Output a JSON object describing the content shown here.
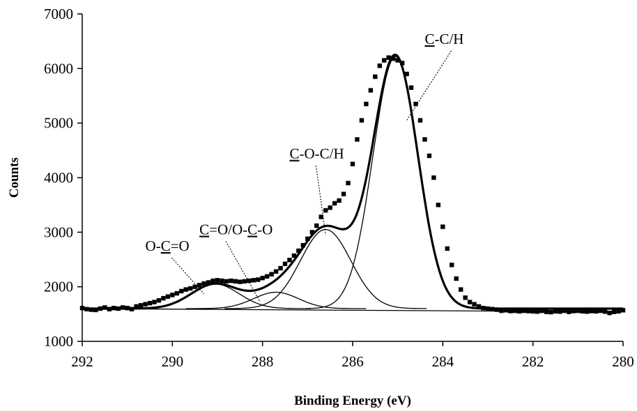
{
  "chart_data": {
    "type": "line",
    "title": "",
    "xlabel": "Binding Energy (eV)",
    "ylabel": "Counts",
    "xlim": [
      292,
      280
    ],
    "ylim": [
      1000,
      7000
    ],
    "x_reversed": true,
    "grid": false,
    "legend": "none",
    "x_ticks": [
      292,
      290,
      288,
      286,
      284,
      282,
      280
    ],
    "y_ticks": [
      1000,
      2000,
      3000,
      4000,
      5000,
      6000,
      7000
    ],
    "baseline": 1600,
    "components": [
      {
        "label_parts": [
          {
            "t": "C",
            "u": true
          },
          {
            "t": "-C/H",
            "u": false
          }
        ],
        "center": 285.05,
        "height": 4620,
        "sigma": 0.5
      },
      {
        "label_parts": [
          {
            "t": "C",
            "u": true
          },
          {
            "t": "-O-C/H",
            "u": false
          }
        ],
        "center": 286.6,
        "height": 1450,
        "sigma": 0.56
      },
      {
        "label_parts": [
          {
            "t": "C",
            "u": true
          },
          {
            "t": "=O/O-",
            "u": false
          },
          {
            "t": "C",
            "u": true
          },
          {
            "t": "-O",
            "u": false
          }
        ],
        "center": 287.7,
        "height": 300,
        "sigma": 0.5
      },
      {
        "label_parts": [
          {
            "t": "O-",
            "u": false
          },
          {
            "t": "C",
            "u": true
          },
          {
            "t": "=O",
            "u": false
          }
        ],
        "center": 289.05,
        "height": 450,
        "sigma": 0.53
      }
    ],
    "measured": {
      "x": [
        292.0,
        291.9,
        291.8,
        291.7,
        291.6,
        291.5,
        291.4,
        291.3,
        291.2,
        291.1,
        291.0,
        290.9,
        290.8,
        290.7,
        290.6,
        290.5,
        290.4,
        290.3,
        290.2,
        290.1,
        290.0,
        289.9,
        289.8,
        289.7,
        289.6,
        289.5,
        289.4,
        289.3,
        289.2,
        289.1,
        289.0,
        288.9,
        288.8,
        288.7,
        288.6,
        288.5,
        288.4,
        288.3,
        288.2,
        288.1,
        288.0,
        287.9,
        287.8,
        287.7,
        287.6,
        287.5,
        287.4,
        287.3,
        287.2,
        287.1,
        287.0,
        286.9,
        286.8,
        286.7,
        286.6,
        286.5,
        286.4,
        286.3,
        286.2,
        286.1,
        286.0,
        285.9,
        285.8,
        285.7,
        285.6,
        285.5,
        285.4,
        285.3,
        285.2,
        285.1,
        285.0,
        284.9,
        284.8,
        284.7,
        284.6,
        284.5,
        284.4,
        284.3,
        284.2,
        284.1,
        284.0,
        283.9,
        283.8,
        283.7,
        283.6,
        283.5,
        283.4,
        283.3,
        283.2,
        283.1,
        283.0,
        282.9,
        282.8,
        282.7,
        282.6,
        282.5,
        282.4,
        282.3,
        282.2,
        282.1,
        282.0,
        281.9,
        281.8,
        281.7,
        281.6,
        281.5,
        281.4,
        281.3,
        281.2,
        281.1,
        281.0,
        280.9,
        280.8,
        280.7,
        280.6,
        280.5,
        280.4,
        280.3,
        280.2,
        280.1,
        280.0
      ],
      "y": [
        1610,
        1590,
        1580,
        1575,
        1600,
        1620,
        1590,
        1610,
        1600,
        1620,
        1610,
        1590,
        1640,
        1660,
        1680,
        1700,
        1720,
        1750,
        1790,
        1820,
        1850,
        1880,
        1920,
        1950,
        1970,
        2000,
        2030,
        2060,
        2080,
        2110,
        2120,
        2110,
        2100,
        2110,
        2100,
        2090,
        2100,
        2110,
        2120,
        2130,
        2160,
        2190,
        2230,
        2280,
        2340,
        2420,
        2490,
        2570,
        2660,
        2760,
        2880,
        3000,
        3120,
        3280,
        3400,
        3450,
        3530,
        3580,
        3700,
        3900,
        4250,
        4700,
        5050,
        5350,
        5600,
        5850,
        6050,
        6150,
        6200,
        6180,
        6150,
        6100,
        5900,
        5650,
        5350,
        5050,
        4700,
        4400,
        4000,
        3500,
        3100,
        2700,
        2400,
        2150,
        1950,
        1800,
        1720,
        1680,
        1640,
        1610,
        1600,
        1590,
        1580,
        1560,
        1570,
        1555,
        1560,
        1550,
        1560,
        1555,
        1550,
        1545,
        1560,
        1540,
        1535,
        1550,
        1545,
        1560,
        1540,
        1555,
        1560,
        1550,
        1545,
        1555,
        1550,
        1560,
        1545,
        1520,
        1540,
        1550,
        1570
      ]
    },
    "annotations": [
      {
        "label_parts": [
          {
            "t": "C",
            "u": true
          },
          {
            "t": "-C/H",
            "u": false
          }
        ],
        "text_x": 284.4,
        "text_y": 6450,
        "tip_x": 284.8,
        "tip_y": 5050
      },
      {
        "label_parts": [
          {
            "t": "C",
            "u": true
          },
          {
            "t": "-O-C/H",
            "u": false
          }
        ],
        "text_x": 287.4,
        "text_y": 4350,
        "tip_x": 286.6,
        "tip_y": 2950
      },
      {
        "label_parts": [
          {
            "t": "C",
            "u": true
          },
          {
            "t": "=O/O-",
            "u": false
          },
          {
            "t": "C",
            "u": true
          },
          {
            "t": "-O",
            "u": false
          }
        ],
        "text_x": 289.4,
        "text_y": 2960,
        "tip_x": 288.05,
        "tip_y": 1720
      },
      {
        "label_parts": [
          {
            "t": "O-",
            "u": false
          },
          {
            "t": "C",
            "u": true
          },
          {
            "t": "=O",
            "u": false
          }
        ],
        "text_x": 290.6,
        "text_y": 2660,
        "tip_x": 289.3,
        "tip_y": 1870
      }
    ]
  }
}
